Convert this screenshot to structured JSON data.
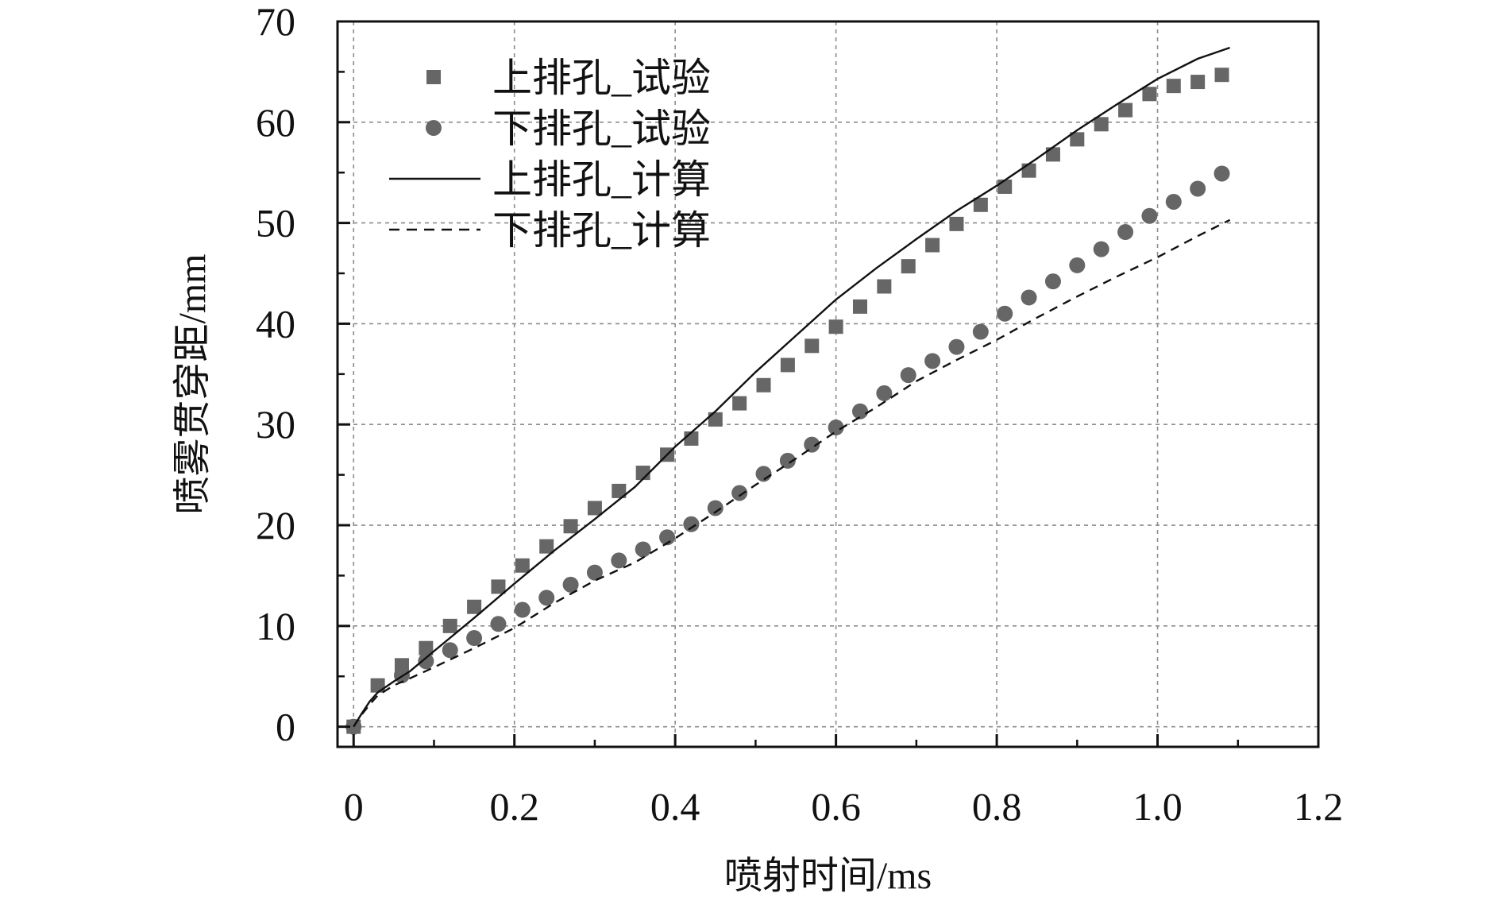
{
  "chart_data": {
    "type": "line",
    "title": "",
    "xlabel": "喷射时间/ms",
    "ylabel": "喷雾贯穿距/mm",
    "xlim": [
      -0.02,
      1.2
    ],
    "ylim": [
      -2,
      70
    ],
    "xticks": [
      0,
      0.2,
      0.4,
      0.6,
      0.8,
      1.0,
      1.2
    ],
    "xtick_labels": [
      "0",
      "0.2",
      "0.4",
      "0.6",
      "0.8",
      "1.0",
      "1.2"
    ],
    "yticks": [
      0,
      10,
      20,
      30,
      40,
      50,
      60,
      70
    ],
    "ytick_labels": [
      "0",
      "10",
      "20",
      "30",
      "40",
      "50",
      "60",
      "70"
    ],
    "grid": true,
    "legend_position": "top-left",
    "series": [
      {
        "name": "上排孔_试验",
        "kind": "scatter",
        "marker": "square",
        "color": "#666666",
        "x": [
          0,
          0.03,
          0.06,
          0.09,
          0.12,
          0.15,
          0.18,
          0.21,
          0.24,
          0.27,
          0.3,
          0.33,
          0.36,
          0.39,
          0.42,
          0.45,
          0.48,
          0.51,
          0.54,
          0.57,
          0.6,
          0.63,
          0.66,
          0.69,
          0.72,
          0.75,
          0.78,
          0.81,
          0.84,
          0.87,
          0.9,
          0.93,
          0.96,
          0.99,
          1.02,
          1.05,
          1.08
        ],
        "y": [
          0,
          4.1,
          6.1,
          7.8,
          10.0,
          11.9,
          13.9,
          16.0,
          17.9,
          19.9,
          21.7,
          23.4,
          25.2,
          27.0,
          28.6,
          30.5,
          32.1,
          33.9,
          35.9,
          37.8,
          39.7,
          41.7,
          43.7,
          45.7,
          47.8,
          49.9,
          51.8,
          53.6,
          55.2,
          56.8,
          58.3,
          59.8,
          61.2,
          62.8,
          63.6,
          64.0,
          64.7
        ]
      },
      {
        "name": "下排孔_试验",
        "kind": "scatter",
        "marker": "circle",
        "color": "#666666",
        "x": [
          0,
          0.06,
          0.09,
          0.12,
          0.15,
          0.18,
          0.21,
          0.24,
          0.27,
          0.3,
          0.33,
          0.36,
          0.39,
          0.42,
          0.45,
          0.48,
          0.51,
          0.54,
          0.57,
          0.6,
          0.63,
          0.66,
          0.69,
          0.72,
          0.75,
          0.78,
          0.81,
          0.84,
          0.87,
          0.9,
          0.93,
          0.96,
          0.99,
          1.02,
          1.05,
          1.08
        ],
        "y": [
          0,
          5.1,
          6.5,
          7.6,
          8.8,
          10.2,
          11.6,
          12.8,
          14.1,
          15.3,
          16.5,
          17.6,
          18.8,
          20.1,
          21.7,
          23.2,
          25.1,
          26.4,
          28.0,
          29.7,
          31.3,
          33.1,
          34.9,
          36.3,
          37.7,
          39.2,
          41.0,
          42.6,
          44.2,
          45.8,
          47.4,
          49.1,
          50.7,
          52.1,
          53.4,
          54.9
        ]
      },
      {
        "name": "上排孔_计算",
        "kind": "line",
        "dash": "solid",
        "color": "#111111",
        "x": [
          0,
          0.01,
          0.02,
          0.03,
          0.05,
          0.07,
          0.1,
          0.15,
          0.2,
          0.25,
          0.3,
          0.35,
          0.4,
          0.45,
          0.5,
          0.55,
          0.6,
          0.65,
          0.7,
          0.75,
          0.8,
          0.85,
          0.9,
          0.95,
          1.0,
          1.05,
          1.09
        ],
        "y": [
          0,
          1.3,
          2.5,
          3.4,
          4.5,
          5.5,
          7.5,
          10.8,
          14.2,
          17.5,
          20.6,
          23.8,
          27.8,
          31.3,
          35.2,
          38.8,
          42.4,
          45.5,
          48.4,
          51.2,
          53.7,
          56.4,
          59.2,
          61.8,
          64.3,
          66.3,
          67.4
        ]
      },
      {
        "name": "下排孔_计算",
        "kind": "line",
        "dash": "dashed",
        "color": "#111111",
        "x": [
          0,
          0.01,
          0.02,
          0.03,
          0.05,
          0.07,
          0.1,
          0.15,
          0.2,
          0.25,
          0.3,
          0.35,
          0.4,
          0.45,
          0.5,
          0.55,
          0.6,
          0.65,
          0.7,
          0.75,
          0.8,
          0.85,
          0.9,
          0.95,
          1.0,
          1.05,
          1.09
        ],
        "y": [
          0,
          1.2,
          2.2,
          3.1,
          4.1,
          4.8,
          5.9,
          7.8,
          9.8,
          12.3,
          14.5,
          16.3,
          18.7,
          21.3,
          24.0,
          26.6,
          29.3,
          31.7,
          34.3,
          36.4,
          38.4,
          40.6,
          42.7,
          44.7,
          46.6,
          48.7,
          50.3
        ]
      }
    ]
  }
}
